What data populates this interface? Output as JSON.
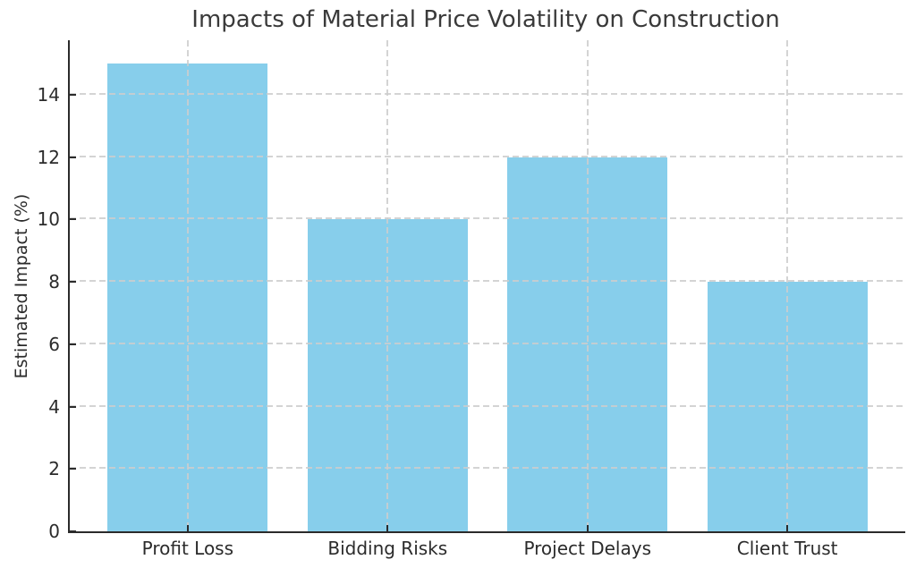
{
  "figure": {
    "background": "#ffffff"
  },
  "chart_data": {
    "type": "bar",
    "title": "Impacts of Material Price Volatility on Construction",
    "xlabel": "",
    "ylabel": "Estimated Impact (%)",
    "categories": [
      "Profit Loss",
      "Bidding Risks",
      "Project Delays",
      "Client Trust"
    ],
    "values": [
      15,
      10,
      12,
      8
    ],
    "yticks": [
      0,
      2,
      4,
      6,
      8,
      10,
      12,
      14
    ],
    "ylim": [
      0,
      15.75
    ],
    "xlim": [
      -0.59,
      3.59
    ],
    "bar_width": 0.8,
    "bar_color": "#87CEEB",
    "grid": true,
    "grid_linestyle": "dashed",
    "grid_color": "#d3d3d3",
    "grid_above_bars": true,
    "tick_direction": "in",
    "spines": [
      "left",
      "bottom"
    ],
    "axis_color": "#2b2b2b",
    "text_color": "#2b2b2b",
    "legend": "none"
  }
}
